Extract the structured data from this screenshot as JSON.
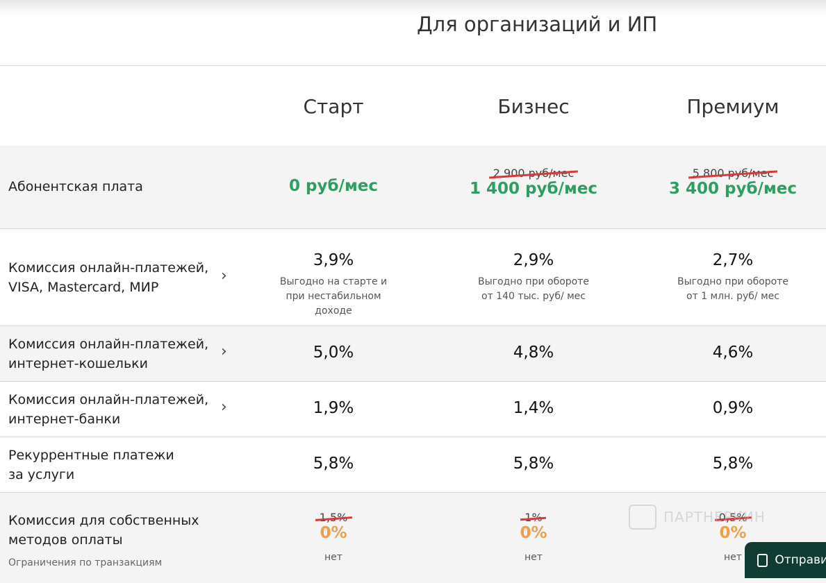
{
  "title": "Для организаций и ИП",
  "plans": [
    "Старт",
    "Бизнес",
    "Премиум"
  ],
  "subscription": {
    "label": "Абонентская плата",
    "start": "0 руб/мес",
    "business_old": "2 900 руб/мес",
    "business": "1 400 руб/мес",
    "premium_old": "5 800 руб/мес",
    "premium": "3 400 руб/мес"
  },
  "cards": {
    "label": "Комиссия онлайн-платежей, VISA, Mastercard, МИР",
    "values": [
      "3,9%",
      "2,9%",
      "2,7%"
    ],
    "notes": [
      "Выгодно на старте и при нестабильном доходе",
      "Выгодно при обороте от 140 тыс. руб/ мес",
      "Выгодно при обороте от 1 млн. руб/ мес"
    ]
  },
  "wallets": {
    "label": "Комиссия онлайн-платежей, интернет-кошельки",
    "values": [
      "5,0%",
      "4,8%",
      "4,6%"
    ]
  },
  "banks": {
    "label": "Комиссия онлайн-платежей, интернет-банки",
    "values": [
      "1,9%",
      "1,4%",
      "0,9%"
    ]
  },
  "recurring": {
    "label": "Рекуррентные платежи за услуги",
    "values": [
      "5,8%",
      "5,8%",
      "5,8%"
    ]
  },
  "own": {
    "label": "Комиссия для собственных методов оплаты",
    "old": [
      "1,5%",
      "1%",
      "0,5%"
    ],
    "values": [
      "0%",
      "0%",
      "0%"
    ],
    "limits_label": "Ограничения по транзакциям",
    "limits": [
      "нет",
      "нет",
      "нет"
    ]
  },
  "watermark": "ПАРТНЕРКИН",
  "send_button": "Отправить",
  "colors": {
    "green": "#2e9e62",
    "orange": "#f0a04a",
    "strike": "#d63a3a"
  }
}
